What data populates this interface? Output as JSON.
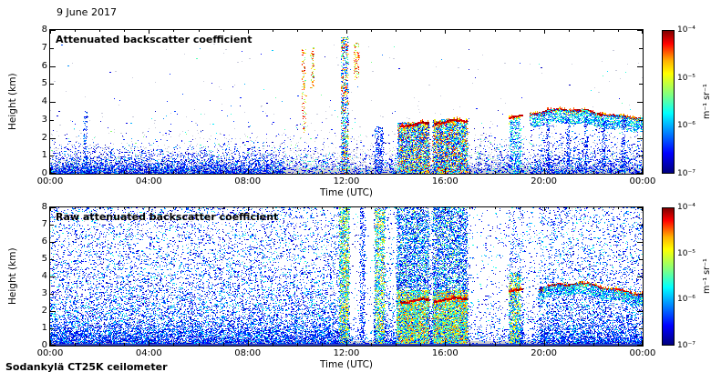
{
  "date_label": "9 June 2017",
  "footer_label": "Sodankylä CT25K ceilometer",
  "axes": {
    "x_label": "Time (UTC)",
    "y_label": "Height (km)",
    "x_ticks": [
      "00:00",
      "04:00",
      "08:00",
      "12:00",
      "16:00",
      "20:00",
      "00:00"
    ],
    "y_ticks": [
      "8",
      "7",
      "6",
      "5",
      "4",
      "3",
      "2",
      "1",
      "0"
    ]
  },
  "colorbar": {
    "ticks": [
      "10⁻⁴",
      "10⁻⁵",
      "10⁻⁶",
      "10⁻⁷"
    ],
    "unit": "m⁻¹ sr⁻¹",
    "colormap": "jet",
    "scale": "log",
    "min": "1e-7",
    "max": "1e-4"
  },
  "panels": [
    {
      "title": "Attenuated backscatter coefficient"
    },
    {
      "title": "Raw attenuated backscatter coefficient"
    }
  ],
  "chart_data": [
    {
      "type": "heatmap",
      "title": "Attenuated backscatter coefficient",
      "xlabel": "Time (UTC)",
      "ylabel": "Height (km)",
      "xlim_hours": [
        0,
        24
      ],
      "ylim_km": [
        0,
        8
      ],
      "color_scale": {
        "min": 1e-07,
        "max": 0.0001,
        "unit": "m⁻¹ sr⁻¹",
        "colormap": "jet",
        "log": true
      },
      "features": [
        {
          "kind": "band",
          "h0": 0,
          "h1": 0.3,
          "color": "#d6d6d6"
        },
        {
          "kind": "speckle",
          "pal": "pale",
          "dist": "exp",
          "t0": 0,
          "t1": 24,
          "count": 6500,
          "hscale": 0.5,
          "hmax": 2.4,
          "gaps": [
            [
              17.0,
              18.6,
              0.45
            ]
          ]
        },
        {
          "kind": "speckle",
          "pal": "pale",
          "dist": "exp",
          "t0": 0,
          "t1": 24,
          "count": 1600,
          "hscale": 1.0,
          "hmax": 3.6,
          "gaps": [
            [
              17.0,
              18.6,
              0.45
            ]
          ]
        },
        {
          "kind": "speckle",
          "pal": "pale",
          "dist": "uniform",
          "t0": 0,
          "t1": 24,
          "count": 240,
          "h0": 0,
          "h1": 7.2
        },
        {
          "kind": "speckle",
          "pal": "cold",
          "dist": "exp",
          "t0": 0,
          "t1": 9.5,
          "count": 2500,
          "hscale": 0.45,
          "hmax": 1.8
        },
        {
          "kind": "speckle",
          "pal": "cold",
          "dist": "uniform",
          "t0": 1.35,
          "t1": 1.5,
          "count": 110,
          "h0": 0,
          "h1": 3.5
        },
        {
          "kind": "speckle",
          "pal": "hot",
          "dist": "uniform",
          "t0": 10.2,
          "t1": 10.35,
          "count": 110,
          "h0": 2.2,
          "h1": 7.0
        },
        {
          "kind": "speckle",
          "pal": "hot",
          "dist": "uniform",
          "t0": 10.55,
          "t1": 10.68,
          "count": 60,
          "h0": 4.6,
          "h1": 7.0
        },
        {
          "kind": "speckle",
          "pal": "mixed",
          "dist": "uniform",
          "t0": 11.78,
          "t1": 12.08,
          "count": 800,
          "h0": 0,
          "h1": 7.6
        },
        {
          "kind": "speckle",
          "pal": "hot",
          "dist": "uniform",
          "t0": 12.32,
          "t1": 12.5,
          "count": 80,
          "h0": 5.2,
          "h1": 7.3
        },
        {
          "kind": "speckle",
          "pal": "cold",
          "dist": "uniform",
          "t0": 13.15,
          "t1": 13.5,
          "count": 230,
          "h0": 0,
          "h1": 2.6
        },
        {
          "kind": "speckle",
          "pal": "mixed",
          "dist": "uniform",
          "t0": 14.08,
          "t1": 15.35,
          "count": 2400,
          "h0": 0,
          "h1": 2.85
        },
        {
          "kind": "cloud_line",
          "t0": 14.2,
          "t1": 15.3,
          "base": 2.7,
          "amp": 0.12
        },
        {
          "kind": "speckle",
          "pal": "mixed",
          "dist": "uniform",
          "t0": 15.5,
          "t1": 16.9,
          "count": 2700,
          "h0": 0,
          "h1": 3.0
        },
        {
          "kind": "cloud_line",
          "t0": 15.55,
          "t1": 16.85,
          "base": 2.85,
          "amp": 0.13
        },
        {
          "kind": "speckle",
          "pal": "pale",
          "dist": "exp",
          "t0": 17.2,
          "t1": 18.6,
          "count": 420,
          "hscale": 0.7,
          "hmax": 2.2
        },
        {
          "kind": "speckle",
          "pal": "cool2",
          "dist": "uniform",
          "t0": 18.62,
          "t1": 19.08,
          "count": 380,
          "h0": 0,
          "h1": 3.2
        },
        {
          "kind": "cloud_line",
          "t0": 18.6,
          "t1": 19.12,
          "base": 3.15,
          "amp": 0.07
        },
        {
          "kind": "cloud_line",
          "t0": 19.45,
          "t1": 24,
          "base": 3.35,
          "amp": 0.22
        },
        {
          "kind": "speckle",
          "pal": "cool2",
          "dist": "below_line",
          "t0": 19.45,
          "t1": 24,
          "count": 1400,
          "base": 3.35,
          "amp": 0.22,
          "depth": 0.75
        },
        {
          "kind": "speckle",
          "pal": "cold",
          "dist": "exp",
          "t0": 19.45,
          "t1": 24,
          "count": 800,
          "hscale": 0.8,
          "hmax": 2.8
        },
        {
          "kind": "speckle",
          "pal": "cold",
          "dist": "uniform",
          "t0": 20.1,
          "t1": 20.22,
          "count": 90,
          "h0": 0,
          "h1": 3.0
        },
        {
          "kind": "speckle",
          "pal": "cold",
          "dist": "uniform",
          "t0": 20.92,
          "t1": 21.06,
          "count": 100,
          "h0": 0,
          "h1": 3.2
        },
        {
          "kind": "speckle",
          "pal": "cold",
          "dist": "uniform",
          "t0": 21.65,
          "t1": 21.78,
          "count": 90,
          "h0": 0,
          "h1": 3.2
        },
        {
          "kind": "speckle",
          "pal": "cold",
          "dist": "uniform",
          "t0": 22.35,
          "t1": 22.5,
          "count": 100,
          "h0": 0,
          "h1": 3.3
        },
        {
          "kind": "speckle",
          "pal": "cold",
          "dist": "uniform",
          "t0": 23.15,
          "t1": 23.3,
          "count": 90,
          "h0": 0,
          "h1": 3.3
        }
      ]
    },
    {
      "type": "heatmap",
      "title": "Raw attenuated backscatter coefficient",
      "xlabel": "Time (UTC)",
      "ylabel": "Height (km)",
      "xlim_hours": [
        0,
        24
      ],
      "ylim_km": [
        0,
        8
      ],
      "color_scale": {
        "min": 1e-07,
        "max": 0.0001,
        "unit": "m⁻¹ sr⁻¹",
        "colormap": "jet",
        "log": true
      },
      "features": [
        {
          "kind": "band",
          "h0": 0,
          "h1": 0.26,
          "color": "#cfcfcf"
        },
        {
          "kind": "speckle",
          "pal": "raw",
          "dist": "mix",
          "t0": 0,
          "t1": 24,
          "count": 26000,
          "hscale": 1.6,
          "gaps": [
            [
              12.14,
              13.12,
              0.85
            ],
            [
              13.58,
              14.04,
              0.5
            ],
            [
              16.95,
              18.58,
              0.8
            ],
            [
              19.16,
              19.78,
              0.7
            ]
          ]
        },
        {
          "kind": "speckle",
          "pal": "cold",
          "dist": "exp",
          "t0": 0,
          "t1": 24,
          "count": 5200,
          "hscale": 0.5,
          "hmax": 1.3,
          "gaps": [
            [
              12.14,
              13.12,
              0.8
            ],
            [
              16.95,
              18.58,
              0.75
            ],
            [
              19.16,
              19.78,
              0.6
            ]
          ]
        },
        {
          "kind": "speckle",
          "pal": "brightcol",
          "dist": "uniform",
          "t0": 11.72,
          "t1": 12.1,
          "count": 1400,
          "h0": 0,
          "h1": 8
        },
        {
          "kind": "speckle",
          "pal": "cold",
          "dist": "uniform",
          "t0": 12.55,
          "t1": 12.75,
          "count": 330,
          "h0": 0,
          "h1": 8
        },
        {
          "kind": "speckle",
          "pal": "brightcol",
          "dist": "uniform",
          "t0": 13.15,
          "t1": 13.55,
          "count": 1100,
          "h0": 0,
          "h1": 8
        },
        {
          "kind": "speckle",
          "pal": "colmix",
          "dist": "uniform",
          "t0": 14.04,
          "t1": 15.35,
          "count": 2800,
          "h0": 0,
          "h1": 8
        },
        {
          "kind": "speckle",
          "pal": "bright2",
          "dist": "uniform",
          "t0": 14.04,
          "t1": 15.35,
          "count": 2100,
          "h0": 0,
          "h1": 3.2
        },
        {
          "kind": "cloud_line",
          "t0": 14.2,
          "t1": 15.3,
          "base": 2.55,
          "amp": 0.12
        },
        {
          "kind": "speckle",
          "pal": "colmix",
          "dist": "uniform",
          "t0": 15.5,
          "t1": 16.9,
          "count": 3000,
          "h0": 0,
          "h1": 8
        },
        {
          "kind": "speckle",
          "pal": "bright2",
          "dist": "uniform",
          "t0": 15.5,
          "t1": 16.9,
          "count": 2300,
          "h0": 0,
          "h1": 3.2
        },
        {
          "kind": "cloud_line",
          "t0": 15.58,
          "t1": 16.85,
          "base": 2.62,
          "amp": 0.14
        },
        {
          "kind": "speckle",
          "pal": "brightcol",
          "dist": "uniform",
          "t0": 18.6,
          "t1": 19.05,
          "count": 750,
          "h0": 0,
          "h1": 4.2
        },
        {
          "kind": "cloud_line",
          "t0": 18.6,
          "t1": 19.1,
          "base": 3.2,
          "amp": 0.08
        },
        {
          "kind": "cloud_line",
          "t0": 19.8,
          "t1": 24,
          "base": 3.3,
          "amp": 0.3
        },
        {
          "kind": "speckle",
          "pal": "cool2",
          "dist": "below_line",
          "t0": 19.8,
          "t1": 24,
          "count": 1100,
          "base": 3.3,
          "amp": 0.3,
          "depth": 0.65
        },
        {
          "kind": "band",
          "h0": 0,
          "h1": 0.1,
          "color": "#2b3fbf"
        }
      ]
    }
  ]
}
